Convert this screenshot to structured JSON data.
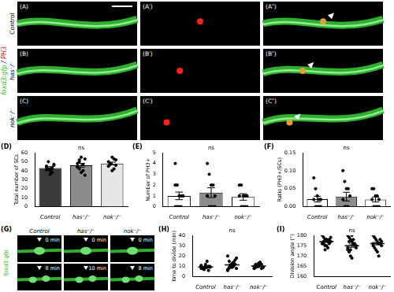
{
  "image_panels": {
    "stain_label": [
      {
        "text": "foxd3:gfp",
        "color": "#2db82d"
      },
      {
        "text": " / ",
        "color": "#000000"
      },
      {
        "text": "PH3",
        "color": "#e02020"
      }
    ],
    "rows": [
      {
        "label": "Control",
        "panels": [
          "(A)",
          "(A′)",
          "(A″)"
        ]
      },
      {
        "label": "has⁻/⁻",
        "panels": [
          "(B)",
          "(B′)",
          "(B″)"
        ]
      },
      {
        "label": "nok⁻/⁻",
        "panels": [
          "(C)",
          "(C′)",
          "(C″)"
        ]
      }
    ],
    "time_lapse": {
      "panel": "(G)",
      "stain_label": "foxd3:gfp",
      "columns": [
        {
          "label": "Control",
          "times": [
            "0 min",
            "8 min"
          ]
        },
        {
          "label": "has⁻/⁻",
          "times": [
            "0 min",
            "10 min"
          ]
        },
        {
          "label": "nok⁻/⁻",
          "times": [
            "0 min",
            "8 min"
          ]
        }
      ]
    }
  },
  "chart_data": [
    {
      "type": "bar",
      "title": "(D)",
      "annotations": [
        "ns"
      ],
      "y_label": "Total number of SCs",
      "categories": [
        "Control",
        "has⁻/⁻",
        "nok⁻/⁻"
      ],
      "values": [
        43,
        46,
        48
      ],
      "errors": [
        1.5,
        2,
        1.5
      ],
      "points": [
        [
          45,
          42,
          40,
          38,
          47,
          44,
          50,
          36,
          43,
          46,
          41
        ],
        [
          48,
          52,
          55,
          40,
          35,
          45,
          50,
          38,
          47,
          53,
          44,
          42
        ],
        [
          50,
          47,
          55,
          42,
          52,
          45,
          48,
          40,
          53,
          46
        ]
      ],
      "colors": [
        "#3a3a3a",
        "#8c8c8c",
        "#e6e6e6"
      ],
      "color": "#000000",
      "ylim": [
        0,
        60
      ],
      "yticks": [
        0,
        10,
        20,
        30,
        40,
        50,
        60
      ],
      "grid": false
    },
    {
      "type": "bar",
      "title": "(E)",
      "annotations": [
        "ns"
      ],
      "y_label": "Number of PH3+",
      "categories": [
        "Control",
        "has⁻/⁻",
        "nok⁻/⁻"
      ],
      "values": [
        1,
        1.3,
        0.9
      ],
      "errors": [
        0.35,
        0.45,
        0.3
      ],
      "points": [
        [
          4,
          2,
          1,
          1,
          1,
          0,
          0,
          0,
          0,
          1,
          2
        ],
        [
          4,
          3,
          2,
          2,
          1,
          1,
          0,
          0,
          0,
          0,
          1
        ],
        [
          2,
          2,
          1,
          1,
          1,
          1,
          0,
          0,
          0,
          0
        ]
      ],
      "colors": [
        "#ffffff",
        "#8c8c8c",
        "#ffffff"
      ],
      "color": "#000000",
      "ylim": [
        0,
        5
      ],
      "yticks": [
        0,
        1,
        2,
        3,
        4,
        5
      ],
      "grid": false
    },
    {
      "type": "bar",
      "title": "(F)",
      "annotations": [
        "ns"
      ],
      "y_label": "Ratio (PH3+/SCs)",
      "categories": [
        "Control",
        "has⁻/⁻",
        "nok⁻/⁻"
      ],
      "values": [
        0.021,
        0.028,
        0.02
      ],
      "errors": [
        0.008,
        0.012,
        0.007
      ],
      "points": [
        [
          0.08,
          0.05,
          0.03,
          0.02,
          0.02,
          0.02,
          0,
          0,
          0,
          0
        ],
        [
          0.1,
          0.07,
          0.05,
          0.05,
          0.03,
          0.02,
          0,
          0,
          0
        ],
        [
          0.05,
          0.05,
          0.03,
          0.03,
          0.02,
          0.02,
          0,
          0,
          0,
          0
        ]
      ],
      "colors": [
        "#ffffff",
        "#8c8c8c",
        "#ffffff"
      ],
      "color": "#000000",
      "ylim": [
        0,
        0.15
      ],
      "yticks": [
        {
          "value": 0,
          "label": "0.00"
        },
        {
          "value": 0.05,
          "label": "0.05"
        },
        {
          "value": 0.1,
          "label": "0.10"
        },
        {
          "value": 0.15,
          "label": "0.15"
        }
      ],
      "grid": false
    },
    {
      "type": "strip",
      "title": "(H)",
      "annotations": [
        "ns"
      ],
      "y_label": "time to divide (min)",
      "categories": [
        "Control",
        "has⁻/⁻",
        "nok⁻/⁻"
      ],
      "values": [
        9.3,
        11.5,
        10.4
      ],
      "errors": [
        0.5,
        0.9,
        0.5
      ],
      "points": [
        [
          8,
          8,
          9,
          9,
          9,
          10,
          10,
          10,
          8,
          7,
          12,
          15,
          6,
          9,
          11,
          8,
          9,
          10
        ],
        [
          6,
          8,
          10,
          12,
          14,
          16,
          18,
          20,
          9,
          11,
          13,
          10,
          12,
          8,
          7,
          15,
          11,
          9
        ],
        [
          8,
          9,
          10,
          10,
          11,
          12,
          9,
          8,
          10,
          11,
          13,
          14,
          8,
          9,
          10,
          12,
          11,
          10
        ]
      ],
      "color": "#000000",
      "ylim": [
        0,
        40
      ],
      "yticks": [
        0,
        10,
        20,
        30,
        40
      ],
      "grid": false
    },
    {
      "type": "strip",
      "title": "(I)",
      "annotations": [
        "ns"
      ],
      "y_label": "Division angle (°)",
      "categories": [
        "Control",
        "has⁻/⁻",
        "nok⁻/⁻"
      ],
      "values": [
        177,
        175,
        176
      ],
      "errors": [
        0.4,
        0.8,
        0.6
      ],
      "points": [
        [
          180,
          179,
          178,
          178,
          177,
          177,
          177,
          176,
          176,
          175,
          175,
          174,
          178,
          179,
          176,
          177,
          173,
          178,
          177,
          176
        ],
        [
          180,
          179,
          178,
          177,
          176,
          175,
          174,
          173,
          172,
          170,
          169,
          178,
          176,
          175,
          174,
          177,
          173,
          180
        ],
        [
          180,
          179,
          178,
          177,
          176,
          176,
          175,
          175,
          174,
          173,
          172,
          170,
          178,
          177,
          176
        ]
      ],
      "color": "#000000",
      "ylim": [
        160,
        180
      ],
      "yticks": [
        160,
        165,
        170,
        175,
        180
      ],
      "grid": false
    }
  ]
}
